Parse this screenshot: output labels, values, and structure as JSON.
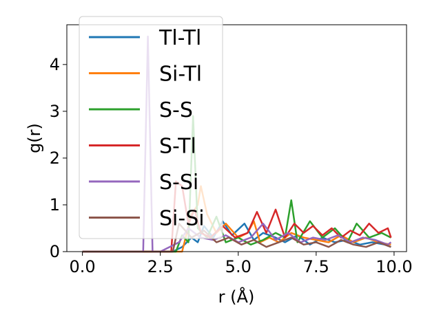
{
  "chart_data": {
    "type": "line",
    "title": "",
    "xlabel": "r (Å)",
    "ylabel": "g(r)",
    "xlim": [
      -0.5,
      10.4
    ],
    "ylim": [
      0,
      4.85
    ],
    "xticks": [
      0.0,
      2.5,
      5.0,
      7.5,
      10.0
    ],
    "xtick_labels": [
      "0.0",
      "2.5",
      "5.0",
      "7.5",
      "10.0"
    ],
    "yticks": [
      0,
      1,
      2,
      3,
      4
    ],
    "ytick_labels": [
      "0",
      "1",
      "2",
      "3",
      "4"
    ],
    "legend_position": "top-left",
    "grid": false,
    "series": [
      {
        "name": "Tl-Tl",
        "color": "#1f77b4",
        "x": [
          0,
          2.9,
          3.2,
          3.5,
          3.7,
          3.9,
          4.2,
          4.5,
          4.8,
          5.2,
          5.5,
          5.8,
          6.2,
          6.5,
          6.9,
          7.3,
          7.7,
          8.1,
          8.5,
          8.9,
          9.3,
          9.7,
          9.9
        ],
        "y": [
          0,
          0,
          0.1,
          0.3,
          0.2,
          0.55,
          0.3,
          0.65,
          0.35,
          0.6,
          0.25,
          0.4,
          0.3,
          0.2,
          0.35,
          0.15,
          0.3,
          0.2,
          0.25,
          0.15,
          0.2,
          0.15,
          0.1
        ]
      },
      {
        "name": "Si-Tl",
        "color": "#ff7f0e",
        "x": [
          0,
          3.2,
          3.5,
          3.7,
          3.8,
          4.0,
          4.3,
          4.6,
          5.0,
          5.3,
          5.5,
          5.7,
          6.0,
          6.3,
          6.7,
          7.1,
          7.5,
          7.9,
          8.3,
          8.7,
          9.1,
          9.5,
          9.9
        ],
        "y": [
          0,
          0,
          0.8,
          1.0,
          1.4,
          0.8,
          0.4,
          0.6,
          0.3,
          0.4,
          0.65,
          0.2,
          0.3,
          0.2,
          0.4,
          0.3,
          0.25,
          0.2,
          0.35,
          0.2,
          0.3,
          0.2,
          0.15
        ]
      },
      {
        "name": "S-S",
        "color": "#2ca02c",
        "x": [
          0,
          3.0,
          3.2,
          3.4,
          3.55,
          3.7,
          4.0,
          4.3,
          4.6,
          5.0,
          5.4,
          5.8,
          6.2,
          6.5,
          6.7,
          6.9,
          7.3,
          7.7,
          8.1,
          8.5,
          8.8,
          9.2,
          9.6,
          9.9
        ],
        "y": [
          0,
          0,
          0.35,
          0.2,
          2.9,
          0.5,
          0.3,
          0.75,
          0.2,
          0.3,
          0.15,
          0.25,
          0.4,
          0.3,
          1.1,
          0.2,
          0.65,
          0.3,
          0.5,
          0.2,
          0.6,
          0.3,
          0.4,
          0.3
        ]
      },
      {
        "name": "S-Tl",
        "color": "#d62728",
        "x": [
          0,
          2.85,
          3.0,
          3.2,
          3.4,
          3.6,
          3.8,
          4.1,
          4.5,
          4.9,
          5.3,
          5.6,
          5.9,
          6.2,
          6.5,
          6.8,
          7.1,
          7.4,
          7.7,
          8.0,
          8.3,
          8.6,
          8.9,
          9.2,
          9.5,
          9.8,
          9.9
        ],
        "y": [
          0,
          0,
          1.5,
          1.4,
          0.6,
          0.9,
          0.4,
          0.3,
          0.55,
          0.3,
          0.4,
          0.85,
          0.4,
          0.9,
          0.3,
          0.6,
          0.4,
          0.55,
          0.35,
          0.5,
          0.3,
          0.45,
          0.35,
          0.6,
          0.4,
          0.5,
          0.3
        ]
      },
      {
        "name": "S-Si",
        "color": "#9467bd",
        "x": [
          0,
          1.95,
          2.1,
          2.25,
          2.5,
          3.1,
          3.4,
          3.8,
          4.2,
          4.6,
          5.0,
          5.4,
          5.8,
          6.2,
          6.6,
          7.0,
          7.4,
          7.8,
          8.2,
          8.6,
          9.0,
          9.4,
          9.8,
          9.9
        ],
        "y": [
          0,
          0,
          4.6,
          0,
          0,
          0.2,
          0.5,
          0.3,
          0.25,
          0.35,
          0.2,
          0.3,
          0.6,
          0.25,
          0.4,
          0.2,
          0.3,
          0.25,
          0.35,
          0.2,
          0.3,
          0.25,
          0.15,
          0.2
        ]
      },
      {
        "name": "Si-Si",
        "color": "#8c564b",
        "x": [
          0,
          2.9,
          3.1,
          3.5,
          3.9,
          4.3,
          4.7,
          5.1,
          5.5,
          5.9,
          6.3,
          6.7,
          7.1,
          7.5,
          7.9,
          8.3,
          8.7,
          9.1,
          9.5,
          9.9
        ],
        "y": [
          0,
          0,
          0.6,
          0.3,
          0.45,
          0.2,
          0.3,
          0.15,
          0.25,
          0.1,
          0.2,
          0.3,
          0.15,
          0.2,
          0.1,
          0.25,
          0.15,
          0.1,
          0.2,
          0.1
        ]
      }
    ]
  }
}
